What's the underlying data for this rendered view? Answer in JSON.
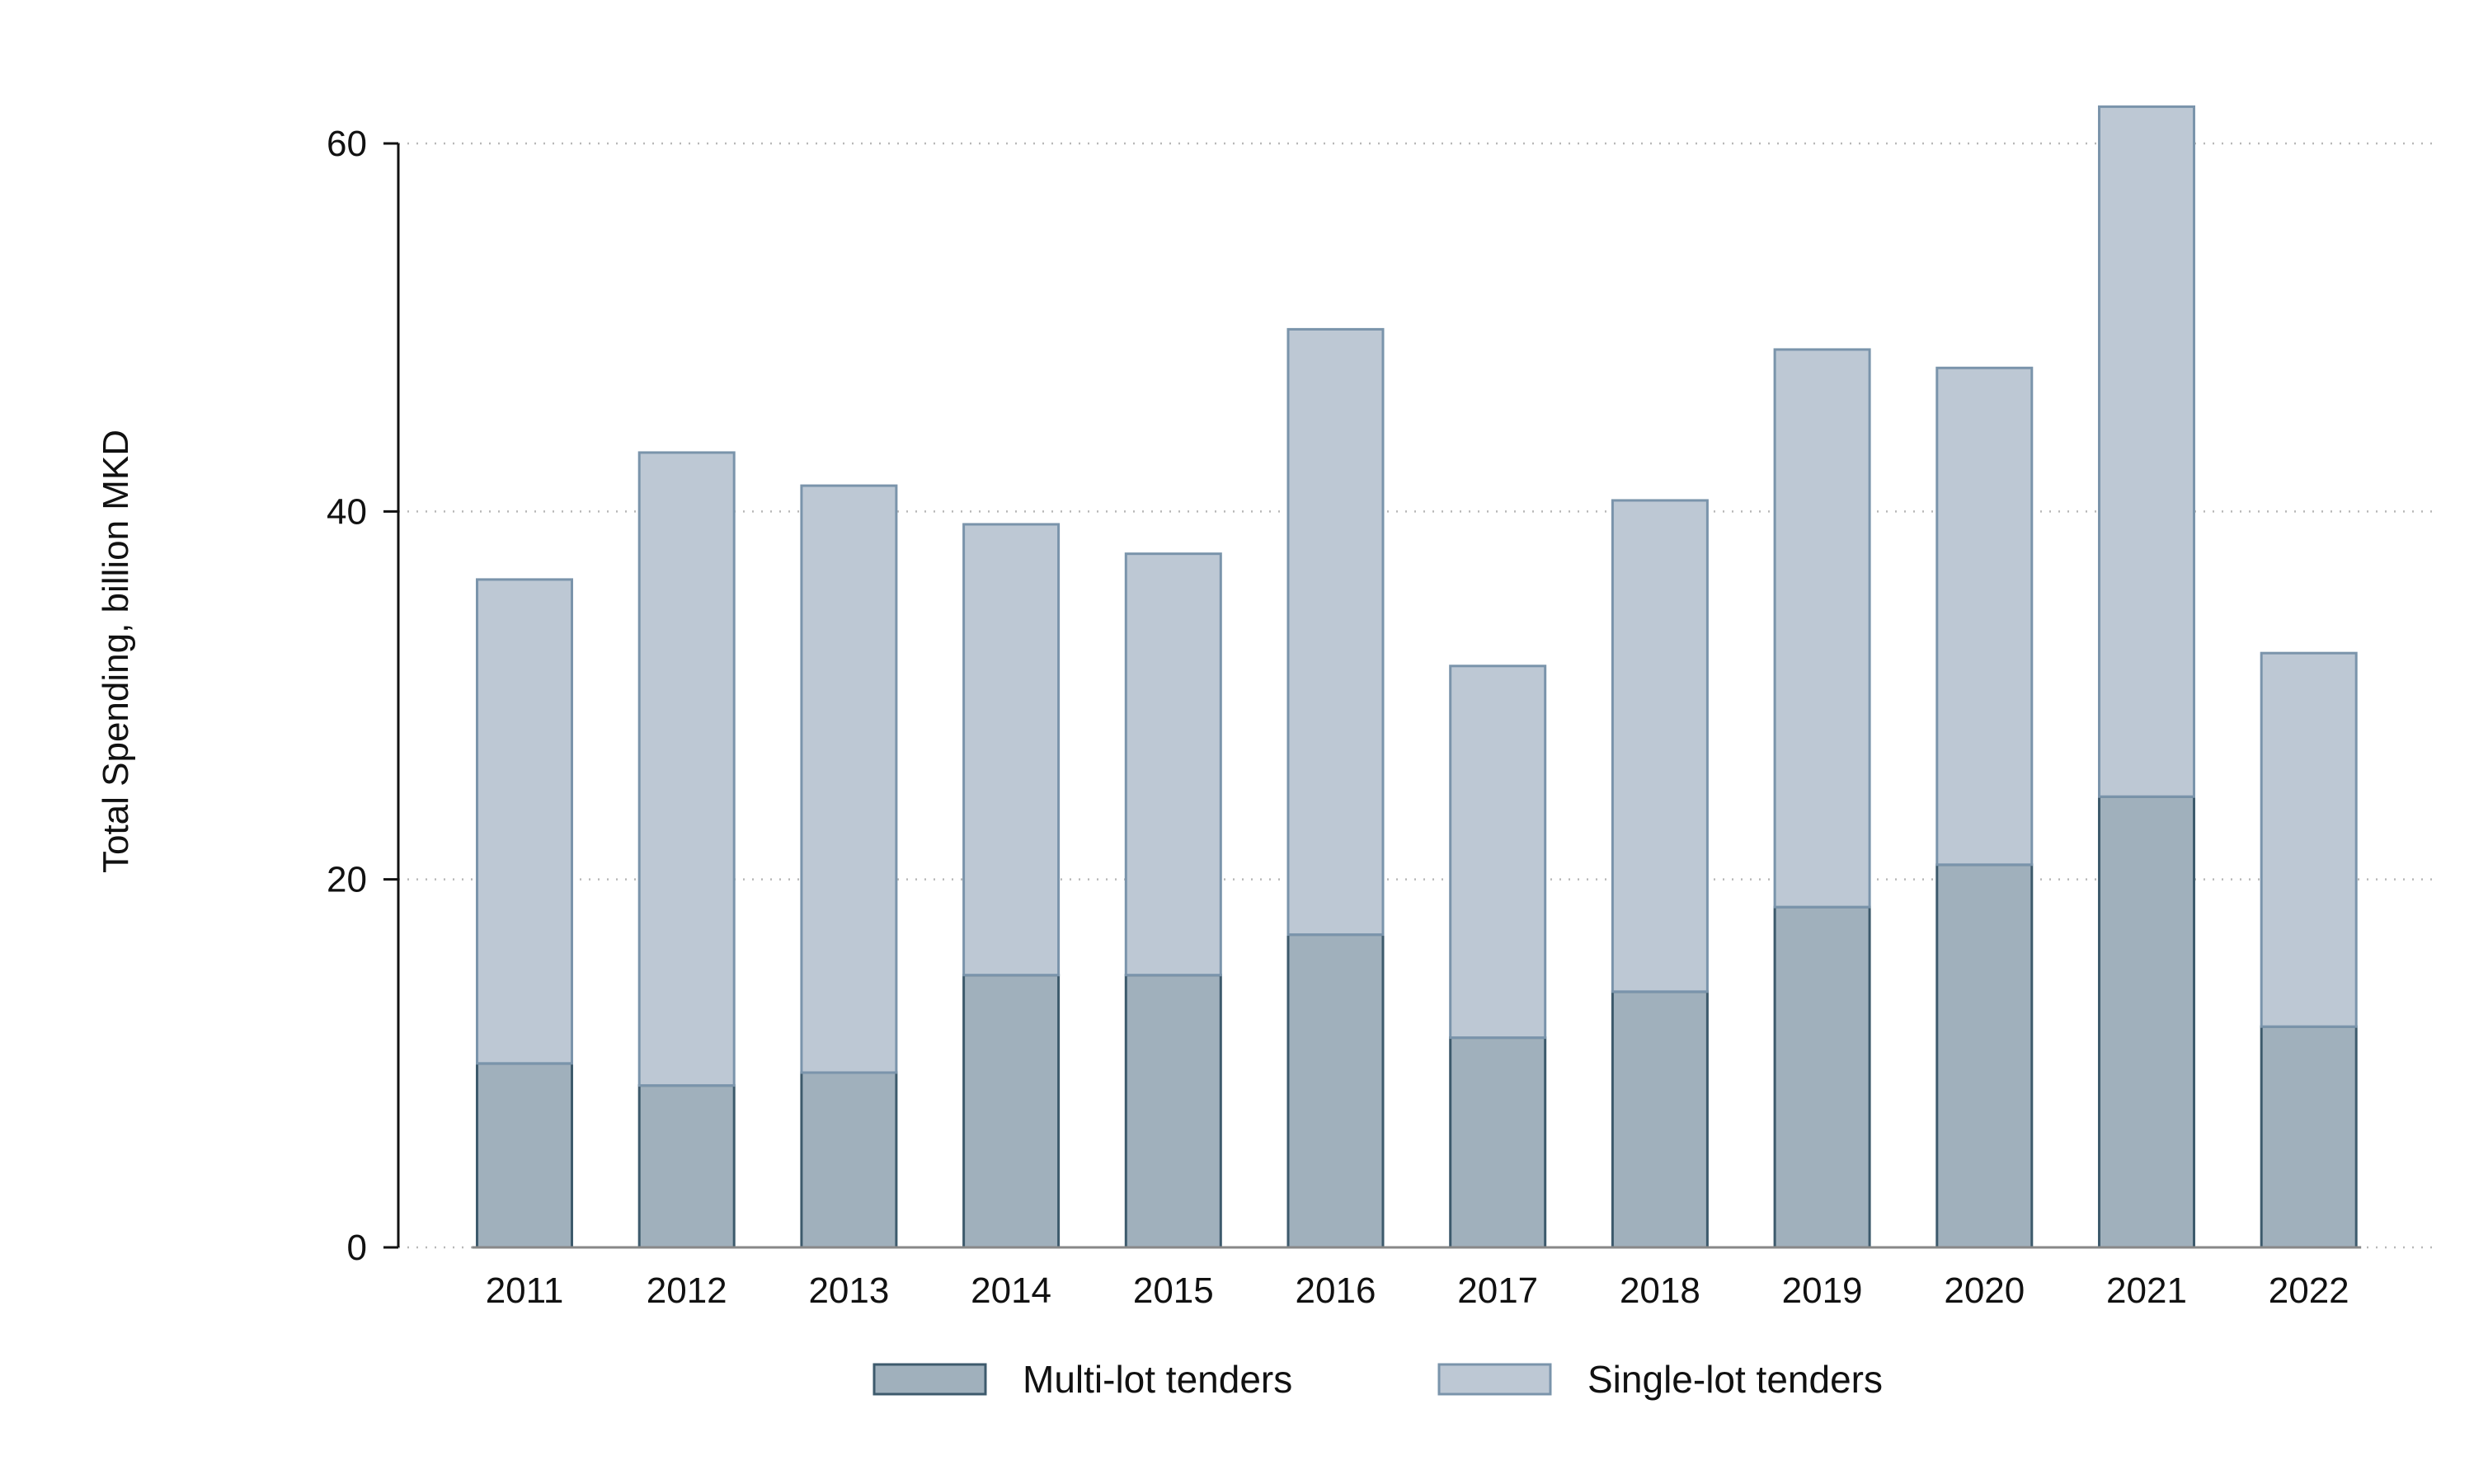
{
  "chart_data": {
    "type": "bar",
    "stacked": true,
    "title": "",
    "xlabel": "",
    "ylabel": "Total Spending, billion MKD",
    "ylim": [
      0,
      60
    ],
    "yticks": [
      0,
      20,
      40,
      60
    ],
    "grid": "horizontal dotted",
    "legend_position": "bottom",
    "categories": [
      "2011",
      "2012",
      "2013",
      "2014",
      "2015",
      "2016",
      "2017",
      "2018",
      "2019",
      "2020",
      "2021",
      "2022"
    ],
    "series": [
      {
        "name": "Multi-lot tenders",
        "color": "#a0b0bc",
        "stroke": "#3d5a6c",
        "values": [
          10.0,
          8.8,
          9.5,
          14.8,
          14.8,
          17.0,
          11.4,
          13.9,
          18.5,
          20.8,
          24.5,
          12.0
        ]
      },
      {
        "name": "Single-lot tenders",
        "color": "#bdc8d4",
        "stroke": "#7a94ab",
        "values": [
          26.3,
          34.4,
          31.9,
          24.5,
          22.9,
          32.9,
          20.2,
          26.7,
          30.3,
          27.0,
          37.5,
          20.3
        ]
      }
    ]
  }
}
